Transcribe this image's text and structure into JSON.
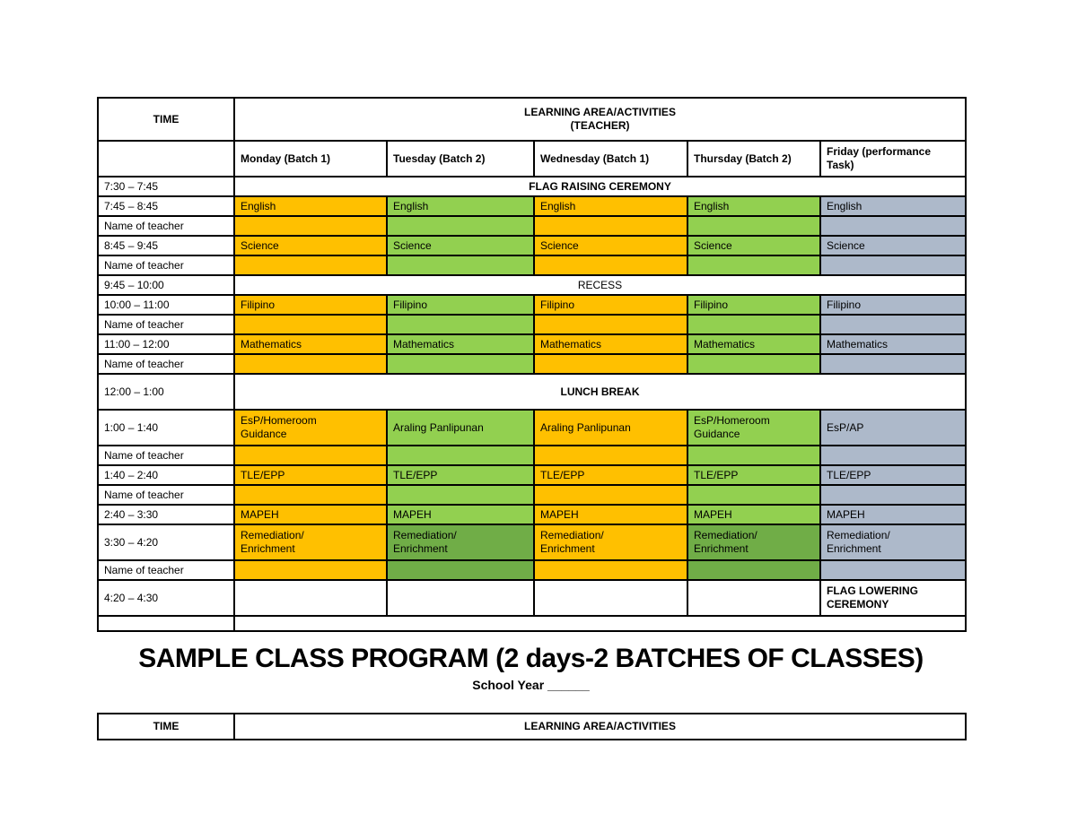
{
  "colors": {
    "batch1_orange": "#FFC000",
    "batch2_green": "#92D050",
    "remediation_dark_green": "#70AD47",
    "friday_blue_gray": "#ADB9CA",
    "border_black": "#000000",
    "fills": {
      "orange": "#FFC000",
      "green": "#92D050",
      "dgreen": "#70AD47",
      "gray": "#ADB9CA",
      "none": ""
    }
  },
  "schedule_table": {
    "header": {
      "time_label": "TIME",
      "main_label": "LEARNING AREA/ACTIVITIES\n(TEACHER)"
    },
    "day_headers": [
      "Monday  (Batch 1)",
      "Tuesday (Batch 2)",
      "Wednesday (Batch 1)",
      "Thursday (Batch 2)",
      "Friday (performance\nTask)"
    ],
    "day_keys": [
      "monday",
      "tuesday",
      "wednesday",
      "thursday",
      "friday"
    ],
    "rows": [
      {
        "kind": "span",
        "time": "7:30 – 7:45",
        "label": "FLAG RAISING CEREMONY",
        "bold": true,
        "h": "s"
      },
      {
        "kind": "cells",
        "time": "7:45 – 8:45",
        "cells": [
          "English",
          "English",
          "English",
          "English",
          "English"
        ],
        "fills": [
          "orange",
          "green",
          "orange",
          "green",
          "gray"
        ],
        "h": "s"
      },
      {
        "kind": "cells",
        "time": "Name of teacher",
        "cells": [
          "",
          "",
          "",
          "",
          ""
        ],
        "fills": [
          "orange",
          "green",
          "orange",
          "green",
          "gray"
        ],
        "h": "s"
      },
      {
        "kind": "cells",
        "time": "8:45 – 9:45",
        "cells": [
          "Science",
          "Science",
          "Science",
          "Science",
          "Science"
        ],
        "fills": [
          "orange",
          "green",
          "orange",
          "green",
          "gray"
        ],
        "h": "s"
      },
      {
        "kind": "cells",
        "time": "Name of teacher",
        "cells": [
          "",
          "",
          "",
          "",
          ""
        ],
        "fills": [
          "orange",
          "green",
          "orange",
          "green",
          "gray"
        ],
        "h": "s"
      },
      {
        "kind": "span",
        "time": "9:45 – 10:00",
        "label": "RECESS",
        "bold": false,
        "h": "s"
      },
      {
        "kind": "cells",
        "time": "10:00 – 11:00",
        "cells": [
          "Filipino",
          "Filipino",
          "Filipino",
          "Filipino",
          "Filipino"
        ],
        "fills": [
          "orange",
          "green",
          "orange",
          "green",
          "gray"
        ],
        "h": "s"
      },
      {
        "kind": "cells",
        "time": "Name of teacher",
        "cells": [
          "",
          "",
          "",
          "",
          ""
        ],
        "fills": [
          "orange",
          "green",
          "orange",
          "green",
          "gray"
        ],
        "h": "s"
      },
      {
        "kind": "cells",
        "time": "11:00 – 12:00",
        "cells": [
          "Mathematics",
          "Mathematics",
          "Mathematics",
          "Mathematics",
          "Mathematics"
        ],
        "fills": [
          "orange",
          "green",
          "orange",
          "green",
          "gray"
        ],
        "h": "s"
      },
      {
        "kind": "cells",
        "time": "Name of teacher",
        "cells": [
          "",
          "",
          "",
          "",
          ""
        ],
        "fills": [
          "orange",
          "green",
          "orange",
          "green",
          "gray"
        ],
        "h": "s"
      },
      {
        "kind": "span",
        "time": "12:00 – 1:00",
        "label": "LUNCH BREAK",
        "bold": true,
        "h": "m"
      },
      {
        "kind": "cells",
        "time": "1:00 – 1:40",
        "cells": [
          "EsP/Homeroom\nGuidance",
          "Araling Panlipunan",
          "Araling Panlipunan",
          "EsP/Homeroom\nGuidance",
          "EsP/AP"
        ],
        "fills": [
          "orange",
          "green",
          "orange",
          "green",
          "gray"
        ],
        "h": "m"
      },
      {
        "kind": "cells",
        "time": "Name of teacher",
        "cells": [
          "",
          "",
          "",
          "",
          ""
        ],
        "fills": [
          "orange",
          "green",
          "orange",
          "green",
          "gray"
        ],
        "h": "s"
      },
      {
        "kind": "cells",
        "time": "1:40 – 2:40",
        "cells": [
          "TLE/EPP",
          "TLE/EPP",
          "TLE/EPP",
          "TLE/EPP",
          "TLE/EPP"
        ],
        "fills": [
          "orange",
          "green",
          "orange",
          "green",
          "gray"
        ],
        "h": "s"
      },
      {
        "kind": "cells",
        "time": "Name of teacher",
        "cells": [
          "",
          "",
          "",
          "",
          ""
        ],
        "fills": [
          "orange",
          "green",
          "orange",
          "green",
          "gray"
        ],
        "h": "s"
      },
      {
        "kind": "cells",
        "time": "2:40 – 3:30",
        "cells": [
          "MAPEH",
          "MAPEH",
          "MAPEH",
          "MAPEH",
          "MAPEH"
        ],
        "fills": [
          "orange",
          "green",
          "orange",
          "green",
          "gray"
        ],
        "h": "s"
      },
      {
        "kind": "cells",
        "time": "3:30 – 4:20",
        "cells": [
          "Remediation/\nEnrichment",
          "Remediation/\nEnrichment",
          "Remediation/\nEnrichment",
          "Remediation/\nEnrichment",
          "Remediation/\nEnrichment"
        ],
        "fills": [
          "orange",
          "dgreen",
          "orange",
          "dgreen",
          "gray"
        ],
        "h": "m"
      },
      {
        "kind": "cells",
        "time": "Name of teacher",
        "cells": [
          "",
          "",
          "",
          "",
          ""
        ],
        "fills": [
          "orange",
          "dgreen",
          "orange",
          "dgreen",
          "gray"
        ],
        "h": "s"
      },
      {
        "kind": "cells",
        "time": "4:20 – 4:30",
        "cells": [
          "",
          "",
          "",
          "",
          "FLAG LOWERING\nCEREMONY"
        ],
        "fills": [
          "none",
          "none",
          "none",
          "none",
          "none"
        ],
        "h": "m",
        "bold_cells": true
      },
      {
        "kind": "span",
        "time": "",
        "label": "",
        "bold": false,
        "h": "xs"
      }
    ]
  },
  "title": "SAMPLE CLASS PROGRAM (2 days-2 BATCHES OF CLASSES)",
  "school_year_label": "School Year ______",
  "second_table": {
    "time_label": "TIME",
    "main_label": "LEARNING AREA/ACTIVITIES"
  }
}
